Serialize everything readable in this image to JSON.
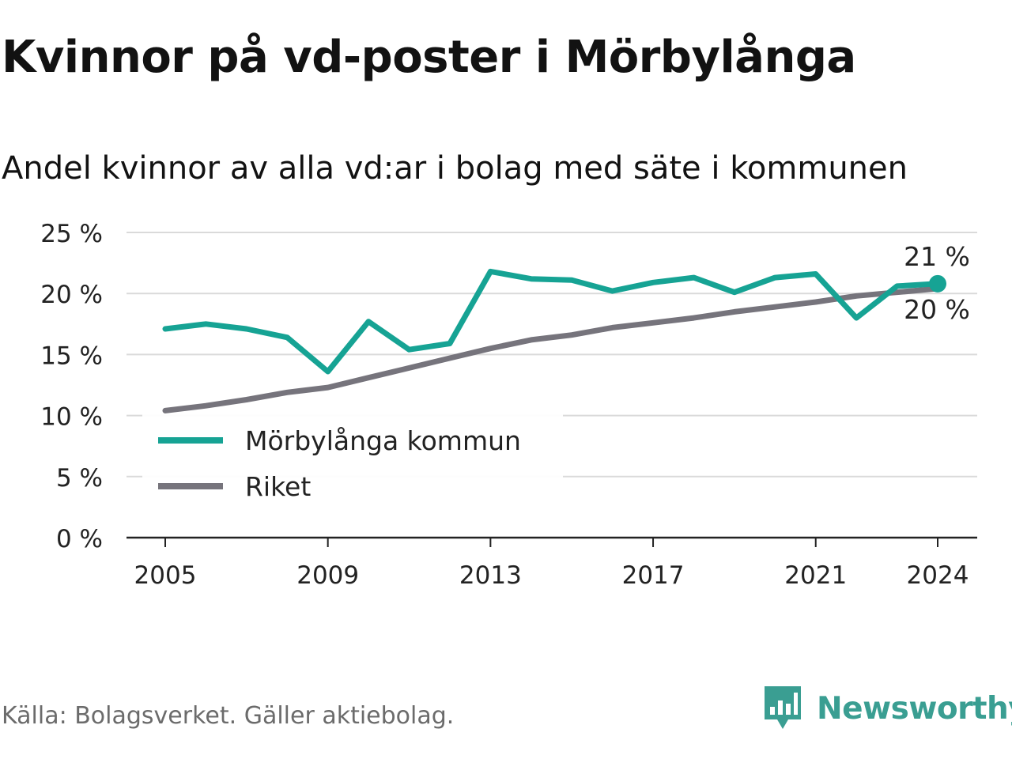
{
  "title": "Kvinnor på vd-poster i Mörbylånga",
  "subtitle": "Andel kvinnor av alla vd:ar i bolag med säte i kommunen",
  "source": "Källa: Bolagsverket. Gäller aktiebolag.",
  "brand": {
    "name": "Newsworthy",
    "icon": "newsworthy-logo-icon",
    "color": "#3a9e92"
  },
  "chart_data": {
    "type": "line",
    "x": [
      2005,
      2006,
      2007,
      2008,
      2009,
      2010,
      2011,
      2012,
      2013,
      2014,
      2015,
      2016,
      2017,
      2018,
      2019,
      2020,
      2021,
      2022,
      2023,
      2024
    ],
    "series": [
      {
        "name": "Mörbylånga kommun",
        "color": "#16a394",
        "values": [
          17.1,
          17.5,
          17.1,
          16.4,
          13.6,
          17.7,
          15.4,
          15.9,
          21.8,
          21.2,
          21.1,
          20.2,
          20.9,
          21.3,
          20.1,
          21.3,
          21.6,
          18.0,
          20.6,
          20.8
        ],
        "end_label": "21 %"
      },
      {
        "name": "Riket",
        "color": "#76747c",
        "values": [
          10.4,
          10.8,
          11.3,
          11.9,
          12.3,
          13.1,
          13.9,
          14.7,
          15.5,
          16.2,
          16.6,
          17.2,
          17.6,
          18.0,
          18.5,
          18.9,
          19.3,
          19.8,
          20.1,
          20.4
        ],
        "end_label": "20 %"
      }
    ],
    "x_ticks": [
      "2005",
      "2009",
      "2013",
      "2017",
      "2021",
      "2024"
    ],
    "y_ticks": [
      "0 %",
      "5 %",
      "10 %",
      "15 %",
      "20 %",
      "25 %"
    ],
    "ylim": [
      0,
      25
    ],
    "grid": true,
    "legend_position": "bottom-left"
  }
}
